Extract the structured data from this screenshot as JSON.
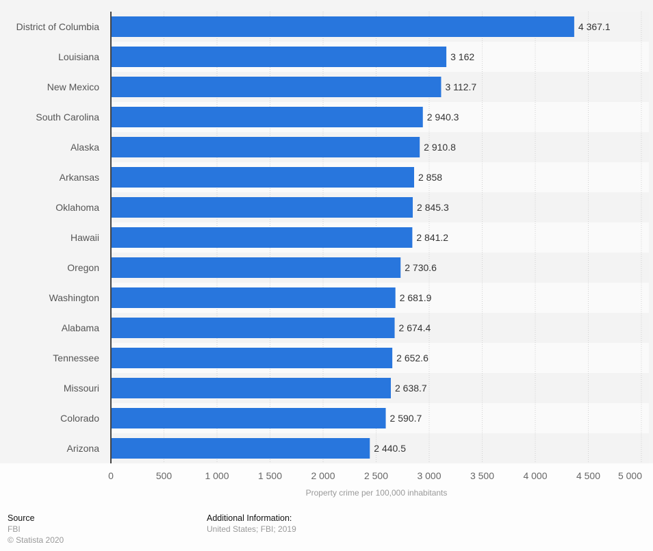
{
  "chart_data": {
    "type": "bar",
    "orientation": "horizontal",
    "title": "",
    "xlabel": "Property crime per 100,000 inhabitants",
    "ylabel": "",
    "xlim": [
      0,
      5000
    ],
    "xticks": [
      0,
      500,
      1000,
      1500,
      2000,
      2500,
      3000,
      3500,
      4000,
      4500,
      5000
    ],
    "xtick_labels": [
      "0",
      "500",
      "1 000",
      "1 500",
      "2 000",
      "2 500",
      "3 000",
      "3 500",
      "4 000",
      "4 500",
      "5 000"
    ],
    "grid": true,
    "bar_color": "#2876dd",
    "categories": [
      "District of Columbia",
      "Louisiana",
      "New Mexico",
      "South Carolina",
      "Alaska",
      "Arkansas",
      "Oklahoma",
      "Hawaii",
      "Oregon",
      "Washington",
      "Alabama",
      "Tennessee",
      "Missouri",
      "Colorado",
      "Arizona"
    ],
    "values": [
      4367.1,
      3162,
      3112.7,
      2940.3,
      2910.8,
      2858,
      2845.3,
      2841.2,
      2730.6,
      2681.9,
      2674.4,
      2652.6,
      2638.7,
      2590.7,
      2440.5
    ],
    "value_labels": [
      "4 367.1",
      "3 162",
      "3 112.7",
      "2 940.3",
      "2 910.8",
      "2 858",
      "2 845.3",
      "2 841.2",
      "2 730.6",
      "2 681.9",
      "2 674.4",
      "2 652.6",
      "2 638.7",
      "2 590.7",
      "2 440.5"
    ]
  },
  "footer": {
    "source_heading": "Source",
    "source_lines": [
      "FBI",
      "© Statista 2020"
    ],
    "additional_heading": "Additional Information:",
    "additional_lines": [
      "United States; FBI; 2019"
    ]
  }
}
